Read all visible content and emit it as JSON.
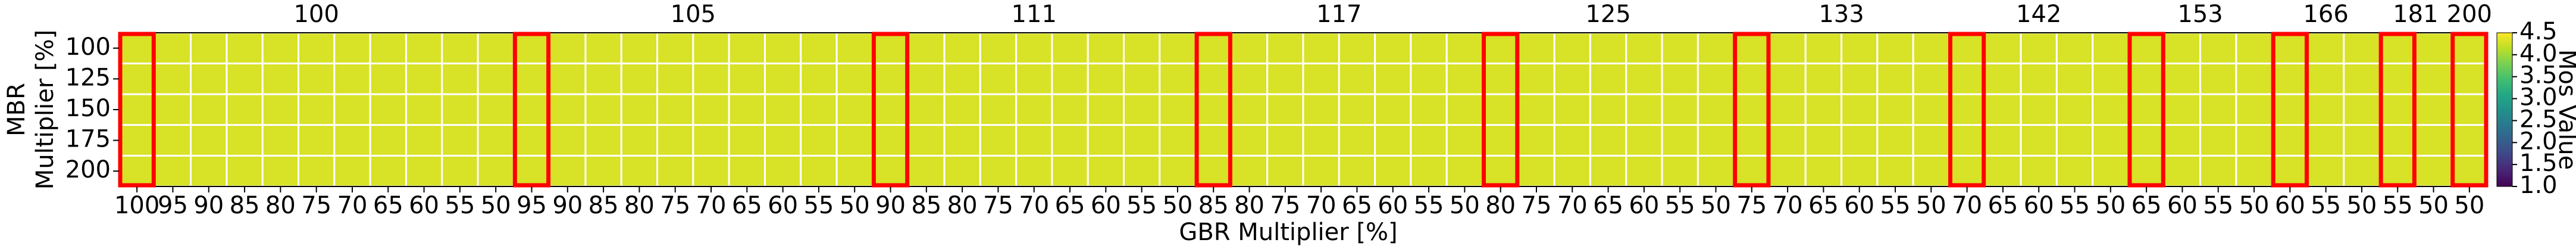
{
  "chart_data": {
    "type": "heatmap",
    "xlabel": "GBR Multiplier [%]",
    "ylabel": [
      "MBR",
      "Multiplier [%]"
    ],
    "colorbar_label": "Mos Value",
    "group_labels": [
      "100",
      "105",
      "111",
      "117",
      "125",
      "133",
      "142",
      "153",
      "166",
      "181",
      "200"
    ],
    "x_categories": [
      100,
      95,
      90,
      85,
      80,
      75,
      70,
      65,
      60,
      55,
      50,
      95,
      90,
      85,
      80,
      75,
      70,
      65,
      60,
      55,
      50,
      90,
      85,
      80,
      75,
      70,
      65,
      60,
      55,
      50,
      85,
      80,
      75,
      70,
      65,
      60,
      55,
      50,
      80,
      75,
      70,
      65,
      60,
      55,
      50,
      75,
      70,
      65,
      60,
      55,
      50,
      70,
      65,
      60,
      55,
      50,
      65,
      60,
      55,
      50,
      60,
      55,
      50,
      55,
      50,
      50
    ],
    "y_categories": [
      100,
      125,
      150,
      175,
      200
    ],
    "values": [
      [
        4.3,
        4.3,
        4.3,
        4.3,
        4.3,
        4.3,
        4.3,
        4.3,
        4.3,
        4.3,
        4.3,
        4.3,
        4.3,
        4.3,
        4.3,
        4.3,
        4.3,
        4.3,
        4.3,
        4.3,
        4.3,
        4.3,
        4.3,
        4.3,
        4.3,
        4.3,
        4.3,
        4.3,
        4.3,
        4.3,
        4.3,
        4.3,
        4.3,
        4.3,
        4.3,
        4.3,
        4.3,
        4.3,
        4.3,
        4.3,
        4.3,
        4.3,
        4.3,
        4.3,
        4.3,
        4.3,
        4.3,
        4.3,
        4.3,
        4.3,
        4.3,
        4.3,
        4.3,
        4.3,
        4.3,
        4.3,
        4.3,
        4.3,
        4.3,
        4.3,
        4.3,
        4.3,
        4.3,
        4.3,
        4.3,
        4.3
      ],
      [
        4.3,
        4.3,
        4.3,
        4.3,
        4.3,
        4.3,
        4.3,
        4.3,
        4.3,
        4.3,
        4.3,
        4.3,
        4.3,
        4.3,
        4.3,
        4.3,
        4.3,
        4.3,
        4.3,
        4.3,
        4.3,
        4.3,
        4.3,
        4.3,
        4.3,
        4.3,
        4.3,
        4.3,
        4.3,
        4.3,
        4.3,
        4.3,
        4.3,
        4.3,
        4.3,
        4.3,
        4.3,
        4.3,
        4.3,
        4.3,
        4.3,
        4.3,
        4.3,
        4.3,
        4.3,
        4.3,
        4.3,
        4.3,
        4.3,
        4.3,
        4.3,
        4.3,
        4.3,
        4.3,
        4.3,
        4.3,
        4.3,
        4.3,
        4.3,
        4.3,
        4.3,
        4.3,
        4.3,
        4.3,
        4.3,
        4.3
      ],
      [
        4.3,
        4.3,
        4.3,
        4.3,
        4.3,
        4.3,
        4.3,
        4.3,
        4.3,
        4.3,
        4.3,
        4.3,
        4.3,
        4.3,
        4.3,
        4.3,
        4.3,
        4.3,
        4.3,
        4.3,
        4.3,
        4.3,
        4.3,
        4.3,
        4.3,
        4.3,
        4.3,
        4.3,
        4.3,
        4.3,
        4.3,
        4.3,
        4.3,
        4.3,
        4.3,
        4.3,
        4.3,
        4.3,
        4.3,
        4.3,
        4.3,
        4.3,
        4.3,
        4.3,
        4.3,
        4.3,
        4.3,
        4.3,
        4.3,
        4.3,
        4.3,
        4.3,
        4.3,
        4.3,
        4.3,
        4.3,
        4.3,
        4.3,
        4.3,
        4.3,
        4.3,
        4.3,
        4.3,
        4.3,
        4.3,
        4.3
      ],
      [
        4.3,
        4.3,
        4.3,
        4.3,
        4.3,
        4.3,
        4.3,
        4.3,
        4.3,
        4.3,
        4.3,
        4.3,
        4.3,
        4.3,
        4.3,
        4.3,
        4.3,
        4.3,
        4.3,
        4.3,
        4.3,
        4.3,
        4.3,
        4.3,
        4.3,
        4.3,
        4.3,
        4.3,
        4.3,
        4.3,
        4.3,
        4.3,
        4.3,
        4.3,
        4.3,
        4.3,
        4.3,
        4.3,
        4.3,
        4.3,
        4.3,
        4.3,
        4.3,
        4.3,
        4.3,
        4.3,
        4.3,
        4.3,
        4.3,
        4.3,
        4.3,
        4.3,
        4.3,
        4.3,
        4.3,
        4.3,
        4.3,
        4.3,
        4.3,
        4.3,
        4.3,
        4.3,
        4.3,
        4.3,
        4.3,
        4.3
      ],
      [
        4.3,
        4.3,
        4.3,
        4.3,
        4.3,
        4.3,
        4.3,
        4.3,
        4.3,
        4.3,
        4.3,
        4.3,
        4.3,
        4.3,
        4.3,
        4.3,
        4.3,
        4.3,
        4.3,
        4.3,
        4.3,
        4.3,
        4.3,
        4.3,
        4.3,
        4.3,
        4.3,
        4.3,
        4.3,
        4.3,
        4.3,
        4.3,
        4.3,
        4.3,
        4.3,
        4.3,
        4.3,
        4.3,
        4.3,
        4.3,
        4.3,
        4.3,
        4.3,
        4.3,
        4.3,
        4.3,
        4.3,
        4.3,
        4.3,
        4.3,
        4.3,
        4.3,
        4.3,
        4.3,
        4.3,
        4.3,
        4.3,
        4.3,
        4.3,
        4.3,
        4.3,
        4.3,
        4.3,
        4.3,
        4.3,
        4.3
      ]
    ],
    "colormap": "viridis",
    "zlim": [
      1.0,
      4.5
    ],
    "zticks": [
      {
        "value": 1.0,
        "label": "1.0"
      },
      {
        "value": 1.5,
        "label": "1.5"
      },
      {
        "value": 2.0,
        "label": "2.0"
      },
      {
        "value": 2.5,
        "label": "2.5"
      },
      {
        "value": 3.0,
        "label": "3.0"
      },
      {
        "value": 3.5,
        "label": "3.5"
      },
      {
        "value": 4.0,
        "label": "4.0"
      },
      {
        "value": 4.5,
        "label": "4.5"
      }
    ],
    "grid_color": "#ffffff",
    "highlight_color": "#ff0000"
  }
}
